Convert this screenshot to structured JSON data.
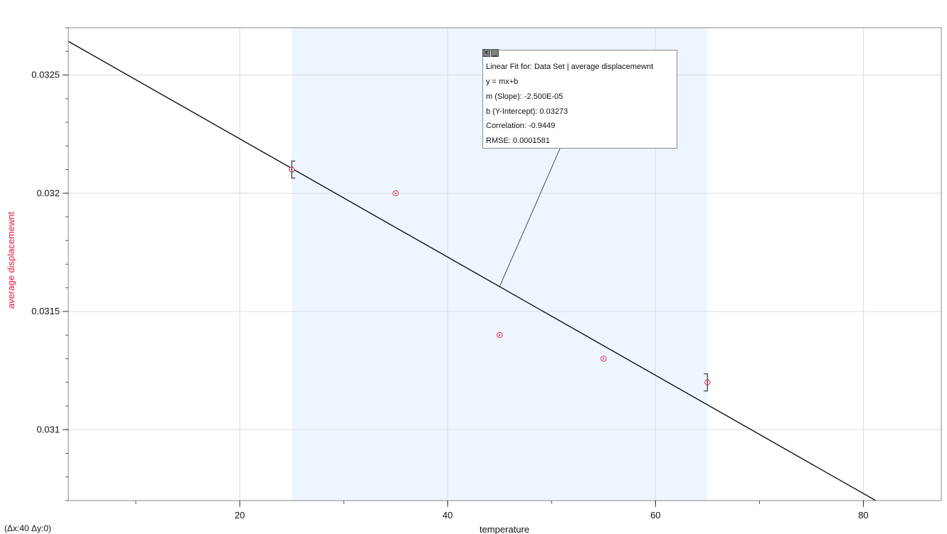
{
  "chart_data": {
    "type": "scatter",
    "xlabel": "temperature",
    "ylabel": "average displacemewnt",
    "xlim": [
      3.5,
      87.5
    ],
    "ylim": [
      0.0307,
      0.0327
    ],
    "x_ticks": [
      20,
      40,
      60,
      80
    ],
    "y_ticks": [
      0.031,
      0.0315,
      0.032,
      0.0325
    ],
    "y_tick_labels": [
      "0.031",
      "0.0315",
      "0.032",
      "0.0325"
    ],
    "x_minor_step": 10,
    "y_minor_step": 0.0001,
    "grid": true,
    "series": [
      {
        "x": [
          25,
          35,
          45,
          55,
          65
        ],
        "y": [
          0.0321,
          0.032,
          0.0314,
          0.0313,
          0.0312
        ],
        "color": "#e8173c"
      }
    ],
    "fit_line": {
      "slope": -2.5e-05,
      "intercept": 0.03273
    },
    "selection_range": [
      25,
      65
    ],
    "fit_anchor_x": 45,
    "colors": {
      "ylabel": "#e8173c",
      "selection": "#eef5ff",
      "fit": "#000000"
    }
  },
  "fit_box": {
    "title": "Linear Fit for: Data Set | average displacemewnt",
    "equation": "y = mx+b",
    "slope": "m (Slope): -2.500E-05",
    "intercept": "b (Y-Intercept): 0.03273",
    "correlation": "Correlation: -0.9449",
    "rmse": "RMSE: 0.0001581",
    "close_symbol": "×",
    "minimize_symbol": "_"
  },
  "delta_readout": "(Δx:40 Δy:0)"
}
